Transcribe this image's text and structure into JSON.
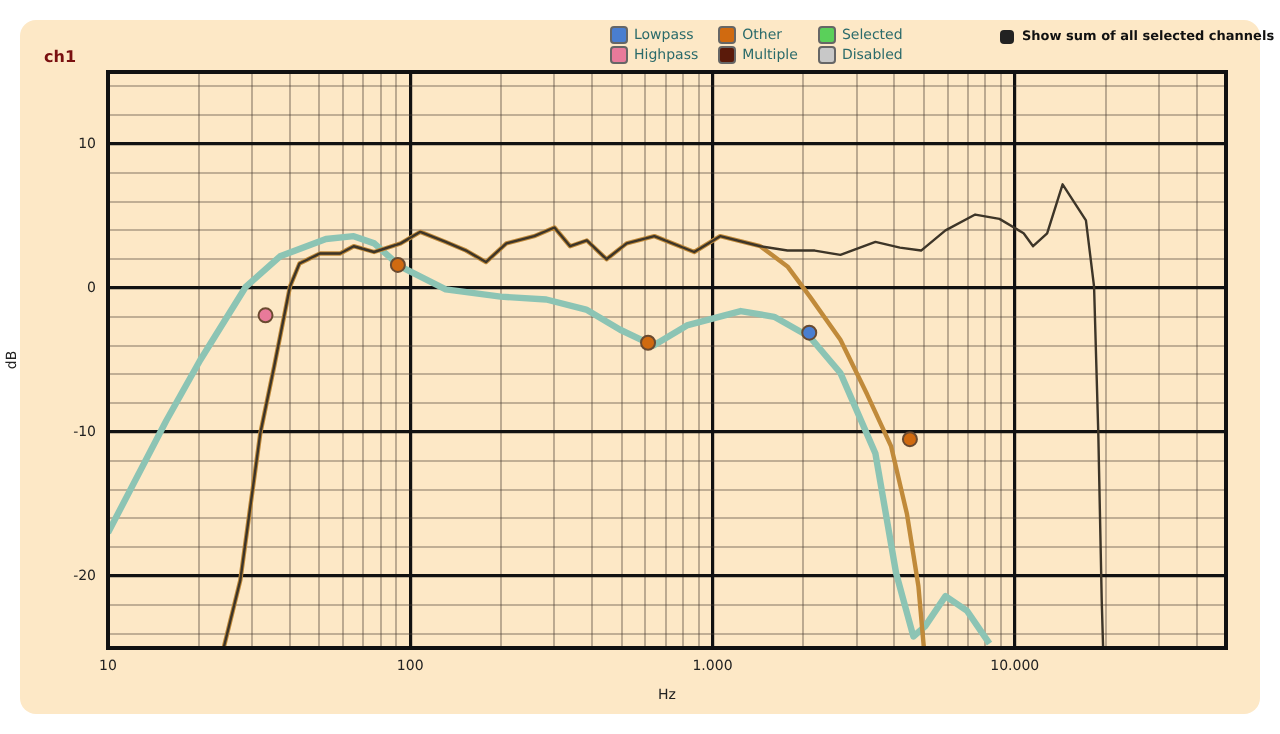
{
  "chart_data": {
    "type": "line",
    "title": "ch1",
    "xlabel": "Hz",
    "ylabel": "dB",
    "log": "x",
    "xlim": [
      10,
      50000
    ],
    "xticks": [
      10,
      {
        "value": 20,
        "label": null
      },
      {
        "value": 30,
        "label": null
      },
      {
        "value": 40,
        "label": null
      },
      {
        "value": 50,
        "label": null
      },
      {
        "value": 60,
        "label": null
      },
      {
        "value": 70,
        "label": null
      },
      {
        "value": 80,
        "label": null
      },
      {
        "value": 90,
        "label": null
      },
      100,
      {
        "value": 200,
        "label": null
      },
      {
        "value": 300,
        "label": null
      },
      {
        "value": 400,
        "label": null
      },
      {
        "value": 500,
        "label": null
      },
      {
        "value": 600,
        "label": null
      },
      {
        "value": 700,
        "label": null
      },
      {
        "value": 800,
        "label": null
      },
      {
        "value": 900,
        "label": null
      },
      {
        "value": 1000,
        "label": "1.000"
      },
      {
        "value": 2000,
        "label": null
      },
      {
        "value": 3000,
        "label": null
      },
      {
        "value": 4000,
        "label": null
      },
      {
        "value": 5000,
        "label": null
      },
      {
        "value": 6000,
        "label": null
      },
      {
        "value": 7000,
        "label": null
      },
      {
        "value": 8000,
        "label": null
      },
      {
        "value": 9000,
        "label": null
      },
      {
        "value": 10000,
        "label": "10.000"
      },
      {
        "value": 20000,
        "label": null
      },
      {
        "value": 30000,
        "label": null
      },
      {
        "value": 40000,
        "label": null
      }
    ],
    "ylim": [
      -25,
      15
    ],
    "yticks": [
      {
        "value": -24,
        "label": null
      },
      {
        "value": -22,
        "label": null
      },
      -20,
      {
        "value": -18,
        "label": null
      },
      {
        "value": -16,
        "label": null
      },
      {
        "value": -14,
        "label": null
      },
      {
        "value": -12,
        "label": null
      },
      -10,
      {
        "value": -8,
        "label": null
      },
      {
        "value": -6,
        "label": null
      },
      {
        "value": -4,
        "label": null
      },
      {
        "value": -2,
        "label": null
      },
      0,
      {
        "value": 2,
        "label": null
      },
      {
        "value": 4,
        "label": null
      },
      {
        "value": 6,
        "label": null
      },
      {
        "value": 8,
        "label": null
      },
      10,
      {
        "value": 12,
        "label": null
      },
      {
        "value": 14,
        "label": null
      }
    ],
    "grid": true,
    "legend": "top",
    "marker": "none",
    "line_style": "solid",
    "annotations": [
      "Show sum of all selected channels"
    ],
    "series": [
      {
        "color": "#8cc4b4",
        "x": [
          10,
          15.6,
          20.2,
          28.6,
          37.1,
          52.6,
          65,
          76,
          92.6,
          131,
          199,
          282,
          382,
          495,
          638,
          823,
          1240,
          1600,
          2100,
          2650,
          3460,
          4050,
          4620,
          5050,
          5900,
          6940,
          8250
        ],
        "values": [
          -17,
          -9.2,
          -5,
          0.1,
          2.2,
          3.4,
          3.6,
          3.1,
          1.5,
          -0.1,
          -0.6,
          -0.8,
          -1.5,
          -2.9,
          -4,
          -2.6,
          -1.6,
          -2,
          -3.4,
          -5.9,
          -11.5,
          -19.8,
          -24.2,
          -23.5,
          -21.4,
          -22.4,
          -24.7
        ]
      },
      {
        "color": "#c08a3a",
        "x": [
          24.2,
          27.4,
          31.9,
          35.5,
          40,
          43,
          50.3,
          58.6,
          65,
          75.9,
          93,
          108,
          131,
          153,
          178,
          208,
          257,
          300,
          338,
          384,
          446,
          520,
          642,
          870,
          1060,
          1440,
          1770,
          2100,
          2650,
          3250,
          3900,
          4400,
          4800,
          5000
        ],
        "values": [
          -24.9,
          -20.3,
          -10.1,
          -5.4,
          0.1,
          1.7,
          2.4,
          2.4,
          2.9,
          2.5,
          3.1,
          3.9,
          3.2,
          2.6,
          1.8,
          3.1,
          3.6,
          4.2,
          2.9,
          3.3,
          2,
          3.1,
          3.6,
          2.5,
          3.6,
          2.9,
          1.5,
          -0.6,
          -3.6,
          -7.4,
          -11,
          -15.7,
          -20.7,
          -24.9
        ]
      },
      {
        "color": "#3d3528",
        "x": [
          24.2,
          27.4,
          31.9,
          35.5,
          40,
          43,
          50.3,
          58.6,
          65,
          75.9,
          93,
          108,
          131,
          153,
          178,
          208,
          257,
          300,
          338,
          384,
          446,
          520,
          642,
          870,
          1060,
          1440,
          1770,
          2180,
          2650,
          3460,
          4170,
          4900,
          5900,
          7400,
          8900,
          10700,
          11500,
          12800,
          14400,
          17200,
          18300,
          18900,
          19400,
          19600
        ],
        "values": [
          -24.9,
          -20.3,
          -10.1,
          -5.4,
          0.1,
          1.7,
          2.4,
          2.4,
          2.9,
          2.5,
          3.1,
          3.9,
          3.2,
          2.6,
          1.8,
          3.1,
          3.6,
          4.2,
          2.9,
          3.3,
          2,
          3.1,
          3.6,
          2.5,
          3.6,
          2.9,
          2.6,
          2.6,
          2.3,
          3.2,
          2.8,
          2.6,
          4,
          5.1,
          4.8,
          3.8,
          2.9,
          3.8,
          7.2,
          4.7,
          0.1,
          -10.1,
          -21.7,
          -24.9
        ]
      },
      {
        "name": "Lowpass",
        "type": "scatter",
        "marker": "circle",
        "color": "#4a7ed0",
        "x": [
          2090
        ],
        "values": [
          -3.1
        ]
      },
      {
        "name": "Highpass",
        "type": "scatter",
        "marker": "circle",
        "color": "#e87a9a",
        "x": [
          33.2
        ],
        "values": [
          -1.9
        ]
      },
      {
        "name": "Other",
        "type": "scatter",
        "marker": "circle",
        "color": "#d06a10",
        "x": [
          91,
          612,
          4500
        ],
        "values": [
          1.6,
          -3.8,
          -10.5
        ]
      },
      {
        "name": "Multiple",
        "type": "scatter",
        "marker": "circle",
        "color": "#5a1a0a"
      },
      {
        "name": "Selected",
        "type": "scatter",
        "marker": "circle",
        "color": "#5ad05a"
      },
      {
        "name": "Disabled",
        "type": "scatter",
        "marker": "circle",
        "color": "#c8c8c8"
      }
    ]
  }
}
